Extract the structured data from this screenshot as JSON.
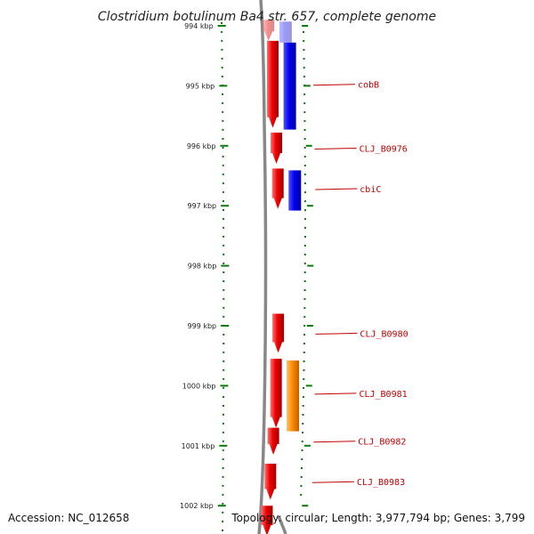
{
  "title": "Clostridium botulinum Ba4 str. 657, complete genome",
  "accession": "Accession: NC_012658",
  "topology": "Topology: circular; Length: 3,977,794 bp; Genes: 3,799",
  "colors": {
    "forward_cds": "#ee0000",
    "cog_blue": "#0000ee",
    "cog_orange": "#ff8c00",
    "backbone": "#888888",
    "tick": "#0a7a0a",
    "label": "#c00000"
  },
  "chart_data": {
    "type": "genome-map",
    "kbp_range": [
      993.9,
      1002.5
    ],
    "tick_labels": [
      {
        "kbp": 994,
        "label": "994 kbp"
      },
      {
        "kbp": 995,
        "label": "995 kbp"
      },
      {
        "kbp": 996,
        "label": "996 kbp"
      },
      {
        "kbp": 997,
        "label": "997 kbp"
      },
      {
        "kbp": 998,
        "label": "998 kbp"
      },
      {
        "kbp": 999,
        "label": "999 kbp"
      },
      {
        "kbp": 1000,
        "label": "1000 kbp"
      },
      {
        "kbp": 1001,
        "label": "1001 kbp"
      },
      {
        "kbp": 1002,
        "label": "1002 kbp"
      }
    ],
    "genes": [
      {
        "name": "",
        "start_kbp": 993.9,
        "end_kbp": 994.25,
        "cog": "blue"
      },
      {
        "name": "cobB",
        "start_kbp": 994.25,
        "end_kbp": 995.7,
        "cog": "blue"
      },
      {
        "name": "CLJ_B0976",
        "start_kbp": 995.78,
        "end_kbp": 996.3,
        "cog": ""
      },
      {
        "name": "cbiC",
        "start_kbp": 996.38,
        "end_kbp": 997.05,
        "cog": "blue"
      },
      {
        "name": "CLJ_B0980",
        "start_kbp": 998.8,
        "end_kbp": 999.45,
        "cog": ""
      },
      {
        "name": "CLJ_B0981",
        "start_kbp": 999.55,
        "end_kbp": 1000.7,
        "cog": "orange"
      },
      {
        "name": "CLJ_B0982",
        "start_kbp": 1000.7,
        "end_kbp": 1001.15,
        "cog": ""
      },
      {
        "name": "CLJ_B0983",
        "start_kbp": 1001.3,
        "end_kbp": 1001.9,
        "cog": ""
      },
      {
        "name": "",
        "start_kbp": 1002.0,
        "end_kbp": 1002.5,
        "cog": ""
      }
    ]
  }
}
